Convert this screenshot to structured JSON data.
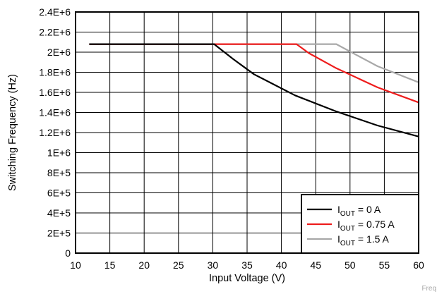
{
  "chart_data": {
    "type": "line",
    "title": "",
    "xlabel": "Input Voltage (V)",
    "ylabel": "Switching Frequency (Hz)",
    "xlim": [
      10,
      60
    ],
    "ylim": [
      0,
      2400000
    ],
    "x_ticks": [
      10,
      15,
      20,
      25,
      30,
      35,
      40,
      45,
      50,
      55,
      60
    ],
    "y_ticks": [
      {
        "value": 0,
        "label": "0"
      },
      {
        "value": 200000,
        "label": "2E+5"
      },
      {
        "value": 400000,
        "label": "4E+5"
      },
      {
        "value": 600000,
        "label": "6E+5"
      },
      {
        "value": 800000,
        "label": "8E+5"
      },
      {
        "value": 1000000,
        "label": "1E+6"
      },
      {
        "value": 1200000,
        "label": "1.2E+6"
      },
      {
        "value": 1400000,
        "label": "1.4E+6"
      },
      {
        "value": 1600000,
        "label": "1.6E+6"
      },
      {
        "value": 1800000,
        "label": "1.8E+6"
      },
      {
        "value": 2000000,
        "label": "2E+6"
      },
      {
        "value": 2200000,
        "label": "2.2E+6"
      },
      {
        "value": 2400000,
        "label": "2.4E+6"
      }
    ],
    "grid": true,
    "legend_position": "bottom-right",
    "series": [
      {
        "name_main": "I",
        "name_sub": "OUT",
        "name_rest": " = 0 A",
        "color": "#000000",
        "points": [
          [
            12,
            2080000
          ],
          [
            30.2,
            2080000
          ],
          [
            33,
            1930000
          ],
          [
            36,
            1780000
          ],
          [
            42,
            1570000
          ],
          [
            48,
            1410000
          ],
          [
            54,
            1270000
          ],
          [
            60,
            1160000
          ]
        ]
      },
      {
        "name_main": "I",
        "name_sub": "OUT",
        "name_rest": " = 0.75 A",
        "color": "#ee1c1c",
        "points": [
          [
            12,
            2080000
          ],
          [
            42.2,
            2080000
          ],
          [
            44,
            1990000
          ],
          [
            48,
            1840000
          ],
          [
            54,
            1650000
          ],
          [
            60,
            1500000
          ]
        ]
      },
      {
        "name_main": "I",
        "name_sub": "OUT",
        "name_rest": " = 1.5 A",
        "color": "#a8a8a8",
        "points": [
          [
            12,
            2080000
          ],
          [
            48,
            2080000
          ],
          [
            51,
            1970000
          ],
          [
            54,
            1860000
          ],
          [
            60,
            1700000
          ]
        ]
      }
    ]
  },
  "corner_tag": "Freq"
}
